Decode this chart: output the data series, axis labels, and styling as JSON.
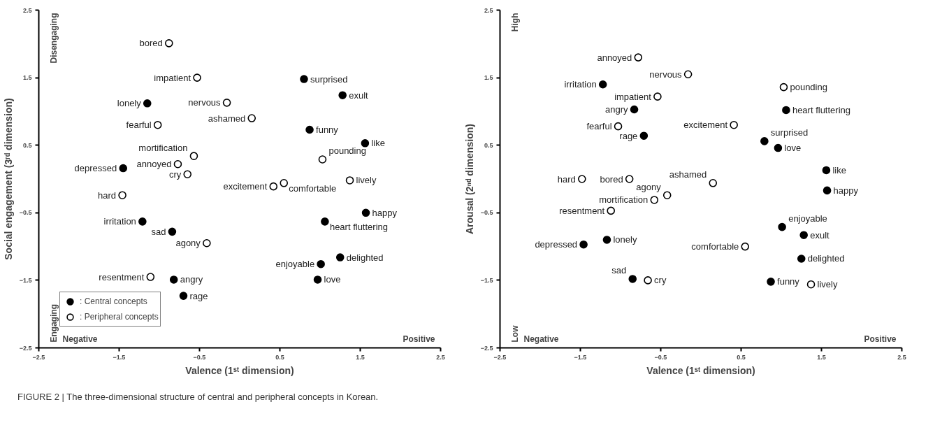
{
  "chart_data": [
    {
      "type": "scatter",
      "xlabel": "Valence (1ˢᵗ dimension)",
      "ylabel": "Social engagement (3ʳᵈ dimension)",
      "xlim": [
        -2.5,
        2.5
      ],
      "ylim": [
        -2.5,
        2.5
      ],
      "xticks": [
        -2.5,
        -1.5,
        -0.5,
        0.5,
        1.5,
        2.5
      ],
      "yticks": [
        -2.5,
        -1.5,
        -0.5,
        0.5,
        1.5,
        2.5
      ],
      "grid": false,
      "legend": "bottom left",
      "marker": "circle",
      "series": [
        {
          "name": ": Central concepts",
          "color": "#000000",
          "x": [
            0.8,
            1.28,
            -1.15,
            0.87,
            1.56,
            -1.45,
            1.57,
            1.06,
            -1.21,
            -0.84,
            1.25,
            1.01,
            -0.82,
            0.97,
            -0.7
          ],
          "values": [
            1.48,
            1.24,
            1.12,
            0.73,
            0.53,
            0.16,
            -0.5,
            -0.63,
            -0.63,
            -0.78,
            -1.16,
            -1.26,
            -1.49,
            -1.49,
            -1.73
          ]
        },
        {
          "name": ": Peripheral concepts",
          "color": "#ffffff",
          "x": [
            -0.88,
            -0.53,
            -0.16,
            0.15,
            -1.02,
            -0.57,
            -0.77,
            1.03,
            -0.65,
            0.42,
            0.55,
            1.37,
            -1.46,
            -0.41,
            -1.11
          ],
          "values": [
            2.01,
            1.5,
            1.13,
            0.9,
            0.8,
            0.34,
            0.22,
            0.29,
            0.07,
            -0.11,
            -0.06,
            -0.02,
            -0.24,
            -0.95,
            -1.45
          ]
        }
      ],
      "annotations": [
        {
          "text": "surprised",
          "x": 0.8,
          "y": 1.48
        },
        {
          "text": "exult",
          "x": 1.28,
          "y": 1.24
        },
        {
          "text": "lonely",
          "x": -1.15,
          "y": 1.12
        },
        {
          "text": "funny",
          "x": 0.87,
          "y": 0.73
        },
        {
          "text": "like",
          "x": 1.56,
          "y": 0.53
        },
        {
          "text": "depressed",
          "x": -1.45,
          "y": 0.16
        },
        {
          "text": "happy",
          "x": 1.57,
          "y": -0.5
        },
        {
          "text": "heart fluttering",
          "x": 1.06,
          "y": -0.63
        },
        {
          "text": "irritation",
          "x": -1.21,
          "y": -0.63
        },
        {
          "text": "sad",
          "x": -0.84,
          "y": -0.78
        },
        {
          "text": "delighted",
          "x": 1.25,
          "y": -1.16
        },
        {
          "text": "enjoyable",
          "x": 1.01,
          "y": -1.26
        },
        {
          "text": "angry",
          "x": -0.82,
          "y": -1.49
        },
        {
          "text": "love",
          "x": 0.97,
          "y": -1.49
        },
        {
          "text": "rage",
          "x": -0.7,
          "y": -1.73
        },
        {
          "text": "bored",
          "x": -0.88,
          "y": 2.01
        },
        {
          "text": "impatient",
          "x": -0.53,
          "y": 1.5
        },
        {
          "text": "nervous",
          "x": -0.16,
          "y": 1.13
        },
        {
          "text": "ashamed",
          "x": 0.15,
          "y": 0.9
        },
        {
          "text": "fearful",
          "x": -1.02,
          "y": 0.8
        },
        {
          "text": "mortification",
          "x": -0.57,
          "y": 0.34
        },
        {
          "text": "annoyed",
          "x": -0.77,
          "y": 0.22
        },
        {
          "text": "pounding",
          "x": 1.03,
          "y": 0.29
        },
        {
          "text": "cry",
          "x": -0.65,
          "y": 0.07
        },
        {
          "text": "excitement",
          "x": 0.42,
          "y": -0.11
        },
        {
          "text": "comfortable",
          "x": 0.55,
          "y": -0.06
        },
        {
          "text": "lively",
          "x": 1.37,
          "y": -0.02
        },
        {
          "text": "hard",
          "x": -1.46,
          "y": -0.24
        },
        {
          "text": "agony",
          "x": -0.41,
          "y": -0.95
        },
        {
          "text": "resentment",
          "x": -1.11,
          "y": -1.45
        },
        "Disengaging",
        "Engaging",
        "Negative",
        "Positive",
        "FIGURE 2 | The three-dimensional structure of central and peripheral concepts in Korean."
      ]
    },
    {
      "type": "scatter",
      "xlabel": "Valence (1ˢᵗ dimension)",
      "ylabel": "Arousal (2ⁿᵈ dimension)",
      "xlim": [
        -2.5,
        2.5
      ],
      "ylim": [
        -2.5,
        2.5
      ],
      "xticks": [
        -2.5,
        -1.5,
        -0.5,
        0.5,
        1.5,
        2.5
      ],
      "yticks": [
        -2.5,
        -1.5,
        -0.5,
        0.5,
        1.5,
        2.5
      ],
      "grid": false,
      "marker": "circle",
      "series": [
        {
          "color": "#000000",
          "x": [
            -1.22,
            -0.83,
            1.06,
            -0.71,
            0.79,
            0.96,
            1.56,
            1.57,
            1.01,
            1.28,
            -1.17,
            -1.46,
            1.25,
            -0.85,
            0.87
          ],
          "values": [
            1.4,
            1.03,
            1.02,
            0.64,
            0.56,
            0.46,
            0.13,
            -0.17,
            -0.71,
            -0.83,
            -0.9,
            -0.97,
            -1.18,
            -1.48,
            -1.52
          ]
        },
        {
          "color": "#ffffff",
          "x": [
            -0.78,
            -0.16,
            1.03,
            -0.54,
            -1.03,
            0.41,
            -1.48,
            -0.89,
            0.15,
            -0.42,
            -0.58,
            -1.12,
            0.55,
            -0.66,
            1.37
          ],
          "values": [
            1.8,
            1.55,
            1.36,
            1.22,
            0.78,
            0.8,
            0.0,
            0.0,
            -0.06,
            -0.24,
            -0.31,
            -0.47,
            -1.0,
            -1.5,
            -1.56
          ]
        }
      ],
      "annotations": [
        {
          "text": "irritation",
          "x": -1.22,
          "y": 1.4
        },
        {
          "text": "angry",
          "x": -0.83,
          "y": 1.03
        },
        {
          "text": "heart fluttering",
          "x": 1.06,
          "y": 1.02
        },
        {
          "text": "rage",
          "x": -0.71,
          "y": 0.64
        },
        {
          "text": "surprised",
          "x": 0.79,
          "y": 0.56
        },
        {
          "text": "love",
          "x": 0.96,
          "y": 0.46
        },
        {
          "text": "like",
          "x": 1.56,
          "y": 0.13
        },
        {
          "text": "happy",
          "x": 1.57,
          "y": -0.17
        },
        {
          "text": "enjoyable",
          "x": 1.01,
          "y": -0.71
        },
        {
          "text": "exult",
          "x": 1.28,
          "y": -0.83
        },
        {
          "text": "lonely",
          "x": -1.17,
          "y": -0.9
        },
        {
          "text": "depressed",
          "x": -1.46,
          "y": -0.97
        },
        {
          "text": "delighted",
          "x": 1.25,
          "y": -1.18
        },
        {
          "text": "sad",
          "x": -0.85,
          "y": -1.48
        },
        {
          "text": "funny",
          "x": 0.87,
          "y": -1.52
        },
        {
          "text": "annoyed",
          "x": -0.78,
          "y": 1.8
        },
        {
          "text": "nervous",
          "x": -0.16,
          "y": 1.55
        },
        {
          "text": "pounding",
          "x": 1.03,
          "y": 1.36
        },
        {
          "text": "impatient",
          "x": -0.54,
          "y": 1.22
        },
        {
          "text": "fearful",
          "x": -1.03,
          "y": 0.78
        },
        {
          "text": "excitement",
          "x": 0.41,
          "y": 0.8
        },
        {
          "text": "hard",
          "x": -1.48,
          "y": 0.0
        },
        {
          "text": "bored",
          "x": -0.89,
          "y": 0.0
        },
        {
          "text": "ashamed",
          "x": 0.15,
          "y": -0.06
        },
        {
          "text": "agony",
          "x": -0.42,
          "y": -0.24
        },
        {
          "text": "mortification",
          "x": -0.58,
          "y": -0.31
        },
        {
          "text": "resentment",
          "x": -1.12,
          "y": -0.47
        },
        {
          "text": "comfortable",
          "x": 0.55,
          "y": -1.0
        },
        {
          "text": "cry",
          "x": -0.66,
          "y": -1.5
        },
        {
          "text": "lively",
          "x": 1.37,
          "y": -1.56
        },
        "High",
        "Low",
        "Negative",
        "Positive"
      ]
    }
  ]
}
